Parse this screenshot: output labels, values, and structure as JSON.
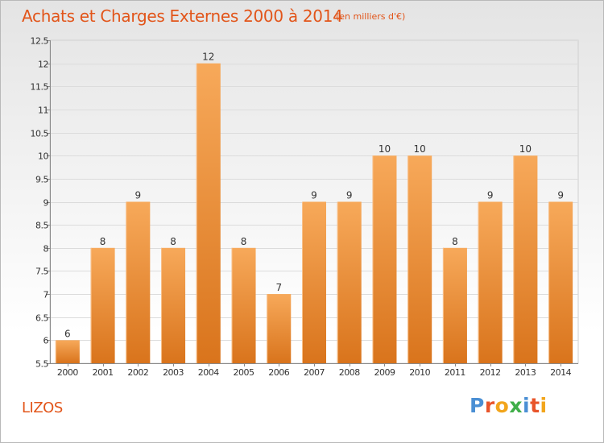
{
  "title": "Achats et Charges Externes 2000 à 2014",
  "subtitle": "(en milliers d'€)",
  "town": "LIZOS",
  "brand": {
    "letters": [
      "P",
      "r",
      "o",
      "x",
      "i",
      "t",
      "i"
    ],
    "colors": [
      "#4a8fd4",
      "#e8542a",
      "#f2a51b",
      "#3fae49",
      "#4a8fd4",
      "#e8542a",
      "#f2a51b"
    ]
  },
  "colors": {
    "bar_light": "#f7a95a",
    "bar_dark": "#d9741c",
    "title": "#e2551a"
  },
  "chart_data": {
    "type": "bar",
    "categories": [
      "2000",
      "2001",
      "2002",
      "2003",
      "2004",
      "2005",
      "2006",
      "2007",
      "2008",
      "2009",
      "2010",
      "2011",
      "2012",
      "2013",
      "2014"
    ],
    "values": [
      6,
      8,
      9,
      8,
      12,
      8,
      7,
      9,
      9,
      10,
      10,
      8,
      9,
      10,
      9
    ],
    "data_labels": [
      "6",
      "8",
      "9",
      "8",
      "12",
      "8",
      "7",
      "9",
      "9",
      "10",
      "10",
      "8",
      "9",
      "10",
      "9"
    ],
    "y_ticks": [
      5.5,
      6,
      6.5,
      7,
      7.5,
      8,
      8.5,
      9,
      9.5,
      10,
      10.5,
      11,
      11.5,
      12,
      12.5
    ],
    "y_tick_labels": [
      "5.5",
      "6",
      "6.5",
      "7",
      "7.5",
      "8",
      "8.5",
      "9",
      "9.5",
      "10",
      "10.5",
      "11",
      "11.5",
      "12",
      "12.5"
    ],
    "ylim": [
      5.5,
      12.5
    ],
    "grid": true
  }
}
